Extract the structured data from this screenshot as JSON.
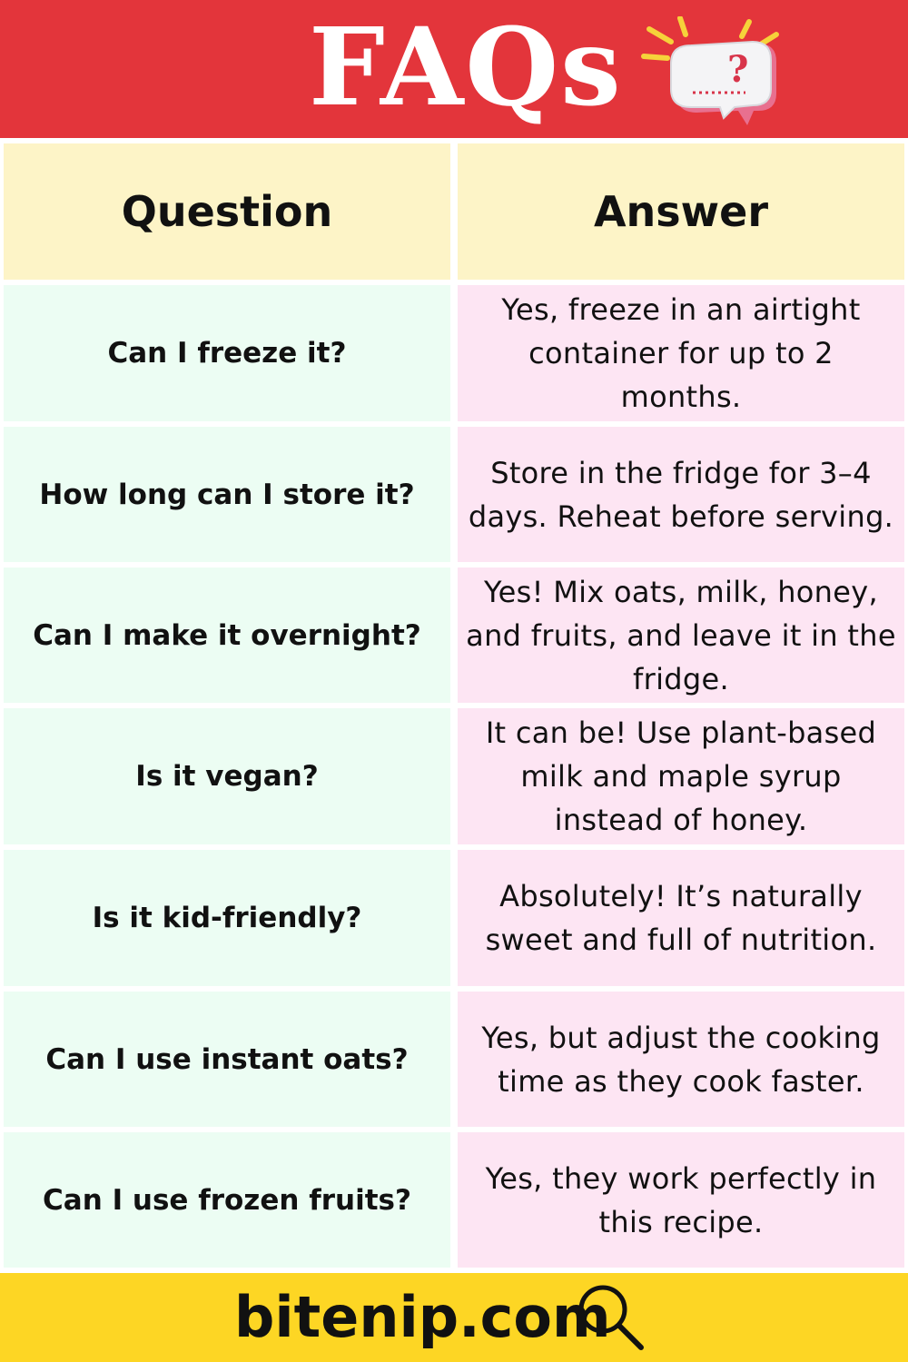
{
  "header": {
    "title": "FAQs",
    "icon": "question-speech-bubble-icon"
  },
  "table": {
    "columns": [
      "Question",
      "Answer"
    ],
    "rows": [
      {
        "question": "Can I freeze it?",
        "answer": "Yes, freeze in an airtight container for up to 2 months."
      },
      {
        "question": "How long can I store it?",
        "answer": "Store in the fridge for 3–4 days. Reheat before serving."
      },
      {
        "question": "Can I make it overnight?",
        "answer": "Yes! Mix oats, milk, honey, and fruits, and leave it in the fridge."
      },
      {
        "question": "Is it vegan?",
        "answer": "It can be! Use plant-based milk and maple syrup instead of honey."
      },
      {
        "question": "Is it kid-friendly?",
        "answer": "Absolutely! It’s naturally sweet and full of nutrition."
      },
      {
        "question": "Can I use instant oats?",
        "answer": "Yes, but adjust the cooking time as they cook faster."
      },
      {
        "question": "Can I use frozen fruits?",
        "answer": "Yes, they work perfectly in this recipe."
      }
    ]
  },
  "footer": {
    "site": "bitenip.com",
    "icon": "search-icon"
  },
  "colors": {
    "header_bg": "#e3353b",
    "header_row_bg": "#fdf4c7",
    "question_bg": "#ecfdf3",
    "answer_bg": "#fde5f3",
    "footer_bg": "#fdd624"
  }
}
